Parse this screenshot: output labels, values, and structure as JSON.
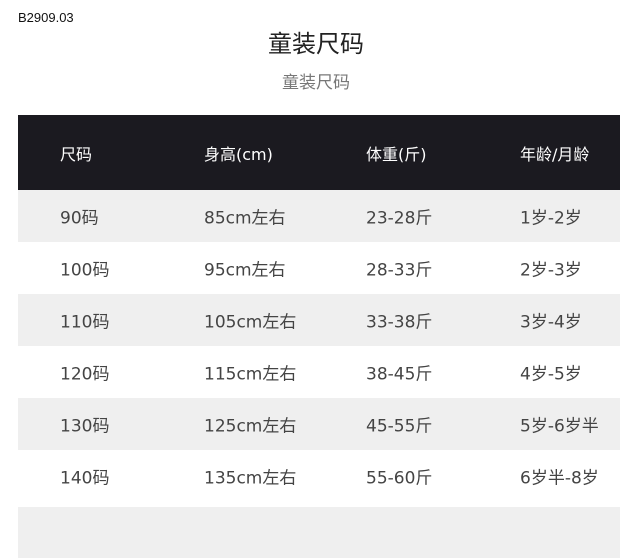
{
  "product_code": "B2909.03",
  "title": "童装尺码",
  "subtitle": "童装尺码",
  "table": {
    "headers": [
      "尺码",
      "身高(cm)",
      "体重(斤)",
      "年龄/月龄"
    ],
    "rows": [
      [
        "90码",
        "85cm左右",
        "23-28斤",
        "1岁-2岁"
      ],
      [
        "100码",
        "95cm左右",
        "28-33斤",
        "2岁-3岁"
      ],
      [
        "110码",
        "105cm左右",
        "33-38斤",
        "3岁-4岁"
      ],
      [
        "120码",
        "115cm左右",
        "38-45斤",
        "4岁-5岁"
      ],
      [
        "130码",
        "125cm左右",
        "45-55斤",
        "5岁-6岁半"
      ],
      [
        "140码",
        "135cm左右",
        "55-60斤",
        "6岁半-8岁"
      ]
    ]
  },
  "colors": {
    "header_bg": "#1b1a20",
    "stripe": "#efefef"
  }
}
